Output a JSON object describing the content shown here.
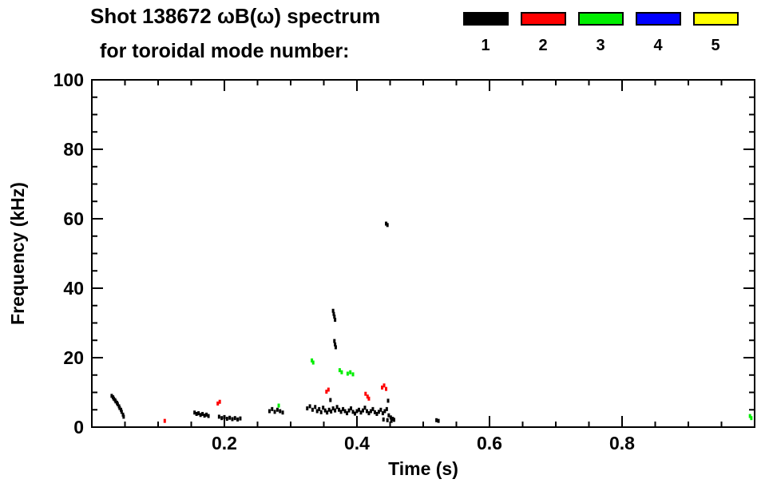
{
  "page": {
    "background": "#ffffff"
  },
  "header": {
    "title": "Shot 138672 ωB(ω) spectrum",
    "subtitle": "for toroidal mode number:"
  },
  "legend": {
    "items": [
      {
        "label": "1",
        "color": "#000000"
      },
      {
        "label": "2",
        "color": "#ff0000"
      },
      {
        "label": "3",
        "color": "#00ee00"
      },
      {
        "label": "4",
        "color": "#0000ff"
      },
      {
        "label": "5",
        "color": "#ffff00"
      }
    ]
  },
  "chart_data": {
    "type": "scatter",
    "title": "Shot 138672 ωB(ω) spectrum",
    "subtitle": "for toroidal mode number:",
    "xlabel": "Time (s)",
    "ylabel": "Frequency (kHz)",
    "xlim": [
      0,
      1.0
    ],
    "ylim": [
      0,
      100
    ],
    "xticks": [
      0.2,
      0.4,
      0.6,
      0.8
    ],
    "yticks": [
      0,
      20,
      40,
      60,
      80,
      100
    ],
    "x_minor_step": 0.05,
    "y_minor_step": 5,
    "grid": false,
    "legend_position": "top-right",
    "marker": {
      "width": 3,
      "height": 5
    },
    "series": [
      {
        "name": "1",
        "color": "#000000",
        "points": [
          [
            0.03,
            9.0
          ],
          [
            0.032,
            8.6
          ],
          [
            0.033,
            8.2
          ],
          [
            0.035,
            7.8
          ],
          [
            0.036,
            7.4
          ],
          [
            0.038,
            7.0
          ],
          [
            0.039,
            6.6
          ],
          [
            0.041,
            6.0
          ],
          [
            0.042,
            5.5
          ],
          [
            0.044,
            5.0
          ],
          [
            0.045,
            4.4
          ],
          [
            0.047,
            3.6
          ],
          [
            0.048,
            3.0
          ],
          [
            0.155,
            4.2
          ],
          [
            0.158,
            3.8
          ],
          [
            0.161,
            4.0
          ],
          [
            0.164,
            3.5
          ],
          [
            0.167,
            3.8
          ],
          [
            0.17,
            3.3
          ],
          [
            0.173,
            3.6
          ],
          [
            0.176,
            3.2
          ],
          [
            0.192,
            3.0
          ],
          [
            0.196,
            2.6
          ],
          [
            0.2,
            2.9
          ],
          [
            0.204,
            2.4
          ],
          [
            0.208,
            2.7
          ],
          [
            0.212,
            2.3
          ],
          [
            0.216,
            2.6
          ],
          [
            0.22,
            2.2
          ],
          [
            0.224,
            2.5
          ],
          [
            0.268,
            4.6
          ],
          [
            0.272,
            5.2
          ],
          [
            0.276,
            4.4
          ],
          [
            0.28,
            5.0
          ],
          [
            0.284,
            4.6
          ],
          [
            0.288,
            4.2
          ],
          [
            0.325,
            5.4
          ],
          [
            0.329,
            6.0
          ],
          [
            0.333,
            5.0
          ],
          [
            0.337,
            5.8
          ],
          [
            0.34,
            4.6
          ],
          [
            0.343,
            5.2
          ],
          [
            0.346,
            4.3
          ],
          [
            0.349,
            5.6
          ],
          [
            0.352,
            4.8
          ],
          [
            0.355,
            4.2
          ],
          [
            0.358,
            5.0
          ],
          [
            0.36,
            7.8
          ],
          [
            0.361,
            4.5
          ],
          [
            0.364,
            5.4
          ],
          [
            0.367,
            4.8
          ],
          [
            0.37,
            5.8
          ],
          [
            0.373,
            5.0
          ],
          [
            0.376,
            4.4
          ],
          [
            0.379,
            5.2
          ],
          [
            0.382,
            4.6
          ],
          [
            0.385,
            4.0
          ],
          [
            0.388,
            4.8
          ],
          [
            0.391,
            5.4
          ],
          [
            0.394,
            4.4
          ],
          [
            0.397,
            3.9
          ],
          [
            0.4,
            4.6
          ],
          [
            0.403,
            5.0
          ],
          [
            0.406,
            4.2
          ],
          [
            0.409,
            4.8
          ],
          [
            0.412,
            5.6
          ],
          [
            0.415,
            4.6
          ],
          [
            0.418,
            4.0
          ],
          [
            0.421,
            4.6
          ],
          [
            0.424,
            5.2
          ],
          [
            0.427,
            4.3
          ],
          [
            0.43,
            3.8
          ],
          [
            0.433,
            4.4
          ],
          [
            0.436,
            5.0
          ],
          [
            0.439,
            4.0
          ],
          [
            0.442,
            4.6
          ],
          [
            0.445,
            5.2
          ],
          [
            0.447,
            7.6
          ],
          [
            0.448,
            3.4
          ],
          [
            0.451,
            2.8
          ],
          [
            0.454,
            2.4
          ],
          [
            0.364,
            33.5
          ],
          [
            0.365,
            32.6
          ],
          [
            0.366,
            31.8
          ],
          [
            0.367,
            30.9
          ],
          [
            0.366,
            24.8
          ],
          [
            0.367,
            23.8
          ],
          [
            0.368,
            23.0
          ],
          [
            0.444,
            58.6
          ],
          [
            0.446,
            58.2
          ],
          [
            0.44,
            2.2
          ],
          [
            0.446,
            2.0
          ],
          [
            0.452,
            1.8
          ],
          [
            0.456,
            2.1
          ],
          [
            0.52,
            2.0
          ],
          [
            0.523,
            1.8
          ]
        ]
      },
      {
        "name": "2",
        "color": "#ff0000",
        "points": [
          [
            0.11,
            1.8
          ],
          [
            0.19,
            6.8
          ],
          [
            0.193,
            7.3
          ],
          [
            0.354,
            10.2
          ],
          [
            0.357,
            10.8
          ],
          [
            0.413,
            9.6
          ],
          [
            0.416,
            8.8
          ],
          [
            0.418,
            8.2
          ],
          [
            0.438,
            11.4
          ],
          [
            0.441,
            12.0
          ],
          [
            0.444,
            11.0
          ]
        ]
      },
      {
        "name": "3",
        "color": "#00ee00",
        "points": [
          [
            0.282,
            6.2
          ],
          [
            0.332,
            19.2
          ],
          [
            0.334,
            18.6
          ],
          [
            0.374,
            16.4
          ],
          [
            0.377,
            15.8
          ],
          [
            0.386,
            15.4
          ],
          [
            0.39,
            15.8
          ],
          [
            0.394,
            15.2
          ],
          [
            0.993,
            3.2
          ],
          [
            0.995,
            2.6
          ]
        ]
      },
      {
        "name": "4",
        "color": "#0000ff",
        "points": []
      },
      {
        "name": "5",
        "color": "#ffff00",
        "points": []
      }
    ]
  }
}
